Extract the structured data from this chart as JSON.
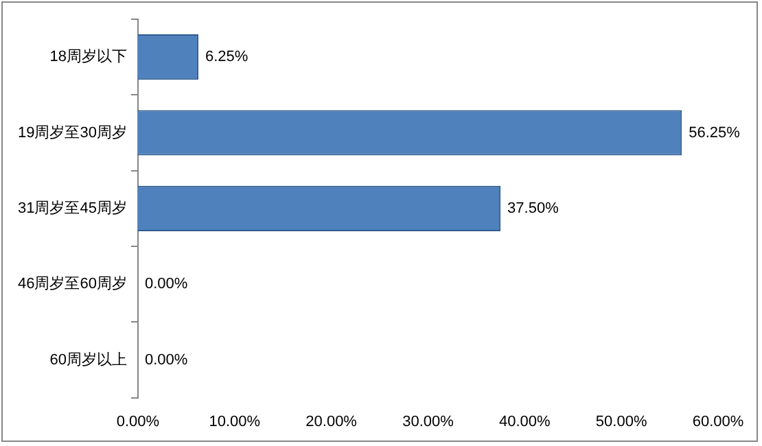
{
  "chart_data": {
    "type": "bar",
    "orientation": "horizontal",
    "categories": [
      "18周岁以下",
      "19周岁至30周岁",
      "31周岁至45周岁",
      "46周岁至60周岁",
      "60周岁以上"
    ],
    "values": [
      6.25,
      56.25,
      37.5,
      0,
      0
    ],
    "value_labels": [
      "6.25%",
      "56.25%",
      "37.50%",
      "0.00%",
      "0.00%"
    ],
    "color": "#4f81bd",
    "xlim": [
      0,
      60
    ],
    "xticks": [
      {
        "value": 0,
        "label": "0.00%"
      },
      {
        "value": 10,
        "label": "10.00%"
      },
      {
        "value": 20,
        "label": "20.00%"
      },
      {
        "value": 30,
        "label": "30.00%"
      },
      {
        "value": 40,
        "label": "40.00%"
      },
      {
        "value": 50,
        "label": "50.00%"
      },
      {
        "value": 60,
        "label": "60.00%"
      }
    ],
    "grid": false,
    "legend": false
  }
}
